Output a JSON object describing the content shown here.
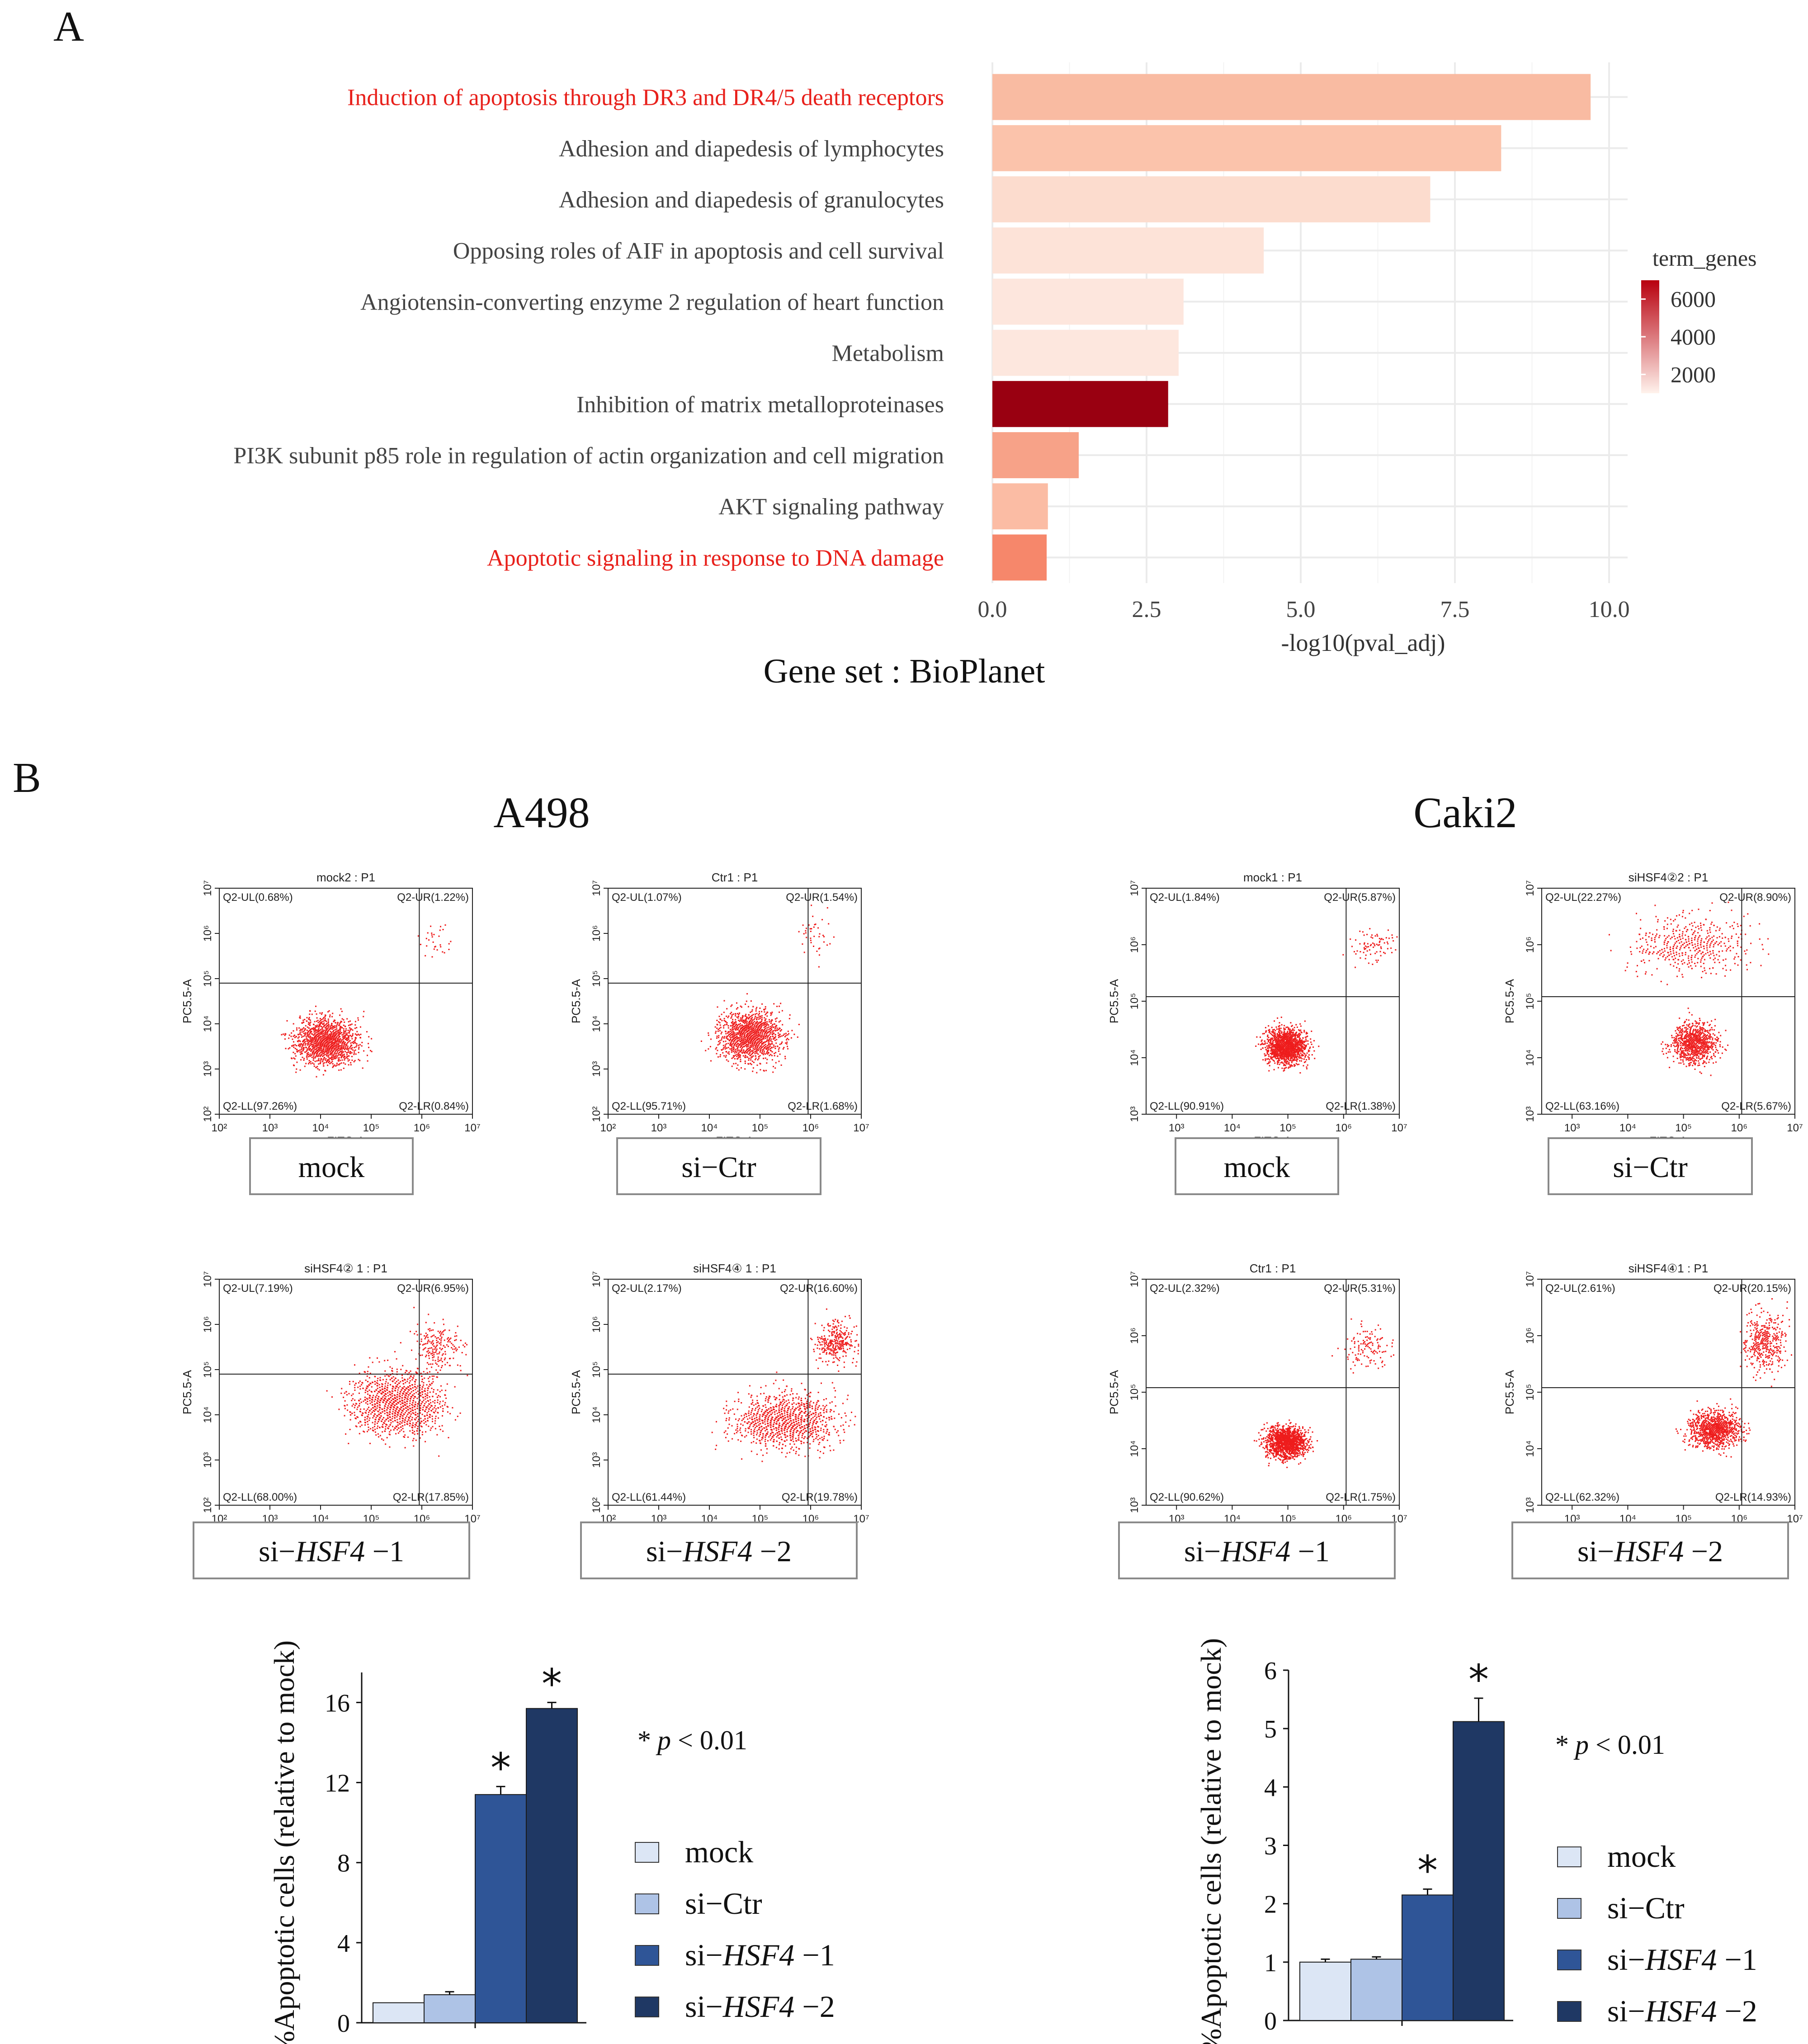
{
  "panel_labels": {
    "a": "A",
    "b": "B"
  },
  "colors": {
    "highlight": "#e8201b",
    "grid": "#ebebeb",
    "flow_dot": "#ee1c1c",
    "mock": "#dce6f5",
    "si_ctr": "#aec3e6",
    "si_hsf4_1": "#2f5597",
    "si_hsf4_2": "#1f3864"
  },
  "chart_data": [
    {
      "id": "A",
      "type": "bar",
      "orientation": "horizontal",
      "categories": [
        "Induction of apoptosis through DR3 and DR4/5 death receptors",
        "Adhesion and diapedesis of lymphocytes",
        "Adhesion and diapedesis of granulocytes",
        "Opposing roles of AIF in apoptosis and cell survival",
        "Angiotensin-converting enzyme 2 regulation of heart function",
        "Metabolism",
        "Inhibition of matrix metalloproteinases",
        "PI3K subunit p85 role in regulation of actin organization and cell migration",
        "AKT signaling pathway",
        "Apoptotic signaling in response to DNA damage"
      ],
      "highlighted": [
        true,
        false,
        false,
        false,
        false,
        false,
        false,
        false,
        false,
        true
      ],
      "values": [
        9.7,
        8.25,
        7.1,
        4.4,
        3.1,
        3.02,
        2.85,
        1.4,
        0.9,
        0.88
      ],
      "fill_colors": [
        "#f9bba2",
        "#fbc3ab",
        "#fcdcce",
        "#fde3d8",
        "#fde6dd",
        "#fde7de",
        "#990011",
        "#f7a288",
        "#fbbca4",
        "#f6876b"
      ],
      "xlabel": "-log10(pval_adj)",
      "xlim": [
        0,
        10.3
      ],
      "xticks": [
        "0.0",
        "2.5",
        "5.0",
        "7.5",
        "10.0"
      ],
      "xtick_values": [
        0,
        2.5,
        5.0,
        7.5,
        10.0
      ],
      "legend": {
        "title": "term_genes",
        "labels": [
          "6000",
          "4000",
          "2000"
        ],
        "label_values": [
          6000,
          4000,
          2000
        ],
        "range": [
          1000,
          7000
        ],
        "color_low": "#fff2ec",
        "color_high": "#b8000e"
      },
      "caption": "Gene set : BioPlanet"
    },
    {
      "id": "B-A498",
      "type": "bar",
      "title": "A498",
      "categories": [
        "mock",
        "si-Ctr",
        "si-HSF4-1",
        "si-HSF4-2"
      ],
      "values": [
        1.0,
        1.4,
        11.4,
        15.7
      ],
      "errors": [
        0.0,
        0.15,
        0.4,
        0.3
      ],
      "significant": [
        false,
        false,
        true,
        true
      ],
      "ylabel": "%Apoptotic cells (relative to mock)",
      "ylim": [
        0,
        17.5
      ],
      "yticks": [
        "0",
        "4",
        "8",
        "12",
        "16"
      ],
      "ytick_values": [
        0,
        4,
        8,
        12,
        16
      ],
      "star": "*",
      "pvalue": {
        "star": "*",
        "p": "p",
        "rest": " < 0.01"
      }
    },
    {
      "id": "B-Caki2",
      "type": "bar",
      "title": "Caki2",
      "categories": [
        "mock",
        "si-Ctr",
        "si-HSF4-1",
        "si-HSF4-2"
      ],
      "values": [
        1.0,
        1.05,
        2.15,
        5.12
      ],
      "errors": [
        0.05,
        0.04,
        0.1,
        0.4
      ],
      "significant": [
        false,
        false,
        true,
        true
      ],
      "ylabel": "%Apoptotic cells (relative to mock)",
      "ylim": [
        0,
        6
      ],
      "yticks": [
        "0",
        "1",
        "2",
        "3",
        "4",
        "5",
        "6"
      ],
      "ytick_values": [
        0,
        1,
        2,
        3,
        4,
        5,
        6
      ],
      "star": "*",
      "pvalue": {
        "star": "*",
        "p": "p",
        "rest": " < 0.01"
      }
    }
  ],
  "bar_legend": [
    {
      "pre": "si−",
      "ital": "",
      "post": ""
    },
    {
      "pre": "mock",
      "ital": "",
      "post": ""
    },
    {
      "pre": "si−Ctr",
      "ital": "",
      "post": ""
    },
    {
      "pre": "si−",
      "ital": "HSF4",
      "post": " −1"
    },
    {
      "pre": "si−",
      "ital": "HSF4",
      "post": " −2"
    }
  ],
  "flow_plots": {
    "axis_x_label": "FITC-A",
    "axis_y_label": "PC5.5-A",
    "x_ticks": [
      "10²",
      "10³",
      "10⁴",
      "10⁵",
      "10⁶",
      "10⁷"
    ],
    "y_ticks": [
      "10²",
      "10³",
      "10⁴",
      "10⁵",
      "10⁶",
      "10⁷"
    ],
    "plots": [
      {
        "title": "mock2 : P1",
        "UL": "Q2-UL(0.68%)",
        "UR": "Q2-UR(1.22%)",
        "LL": "Q2-LL(97.26%)",
        "LR": "Q2-LR(0.84%)",
        "caption": {
          "pre": "mock",
          "ital": "",
          "post": ""
        }
      },
      {
        "title": "Ctr1 : P1",
        "UL": "Q2-UL(1.07%)",
        "UR": "Q2-UR(1.54%)",
        "LL": "Q2-LL(95.71%)",
        "LR": "Q2-LR(1.68%)",
        "caption": {
          "pre": "si−Ctr",
          "ital": "",
          "post": ""
        }
      },
      {
        "title": "mock1 : P1",
        "UL": "Q2-UL(1.84%)",
        "UR": "Q2-UR(5.87%)",
        "LL": "Q2-LL(90.91%)",
        "LR": "Q2-LR(1.38%)",
        "caption": {
          "pre": "mock",
          "ital": "",
          "post": ""
        }
      },
      {
        "title": "siHSF4②2 : P1",
        "UL": "Q2-UL(22.27%)",
        "UR": "Q2-UR(8.90%)",
        "LL": "Q2-LL(63.16%)",
        "LR": "Q2-LR(5.67%)",
        "caption": {
          "pre": "si−Ctr",
          "ital": "",
          "post": ""
        }
      },
      {
        "title": "siHSF4② 1 : P1",
        "UL": "Q2-UL(7.19%)",
        "UR": "Q2-UR(6.95%)",
        "LL": "Q2-LL(68.00%)",
        "LR": "Q2-LR(17.85%)",
        "caption": {
          "pre": "si−",
          "ital": "HSF4",
          "post": " −1"
        }
      },
      {
        "title": "siHSF4④ 1 : P1",
        "UL": "Q2-UL(2.17%)",
        "UR": "Q2-UR(16.60%)",
        "LL": "Q2-LL(61.44%)",
        "LR": "Q2-LR(19.78%)",
        "caption": {
          "pre": "si−",
          "ital": "HSF4",
          "post": " −2"
        }
      },
      {
        "title": "Ctr1 : P1",
        "UL": "Q2-UL(2.32%)",
        "UR": "Q2-UR(5.31%)",
        "LL": "Q2-LL(90.62%)",
        "LR": "Q2-LR(1.75%)",
        "caption": {
          "pre": "si−",
          "ital": "HSF4",
          "post": " −1"
        }
      },
      {
        "title": "siHSF4④1 : P1",
        "UL": "Q2-UL(2.61%)",
        "UR": "Q2-UR(20.15%)",
        "LL": "Q2-LL(62.32%)",
        "LR": "Q2-LR(14.93%)",
        "caption": {
          "pre": "si−",
          "ital": "HSF4",
          "post": " −2"
        }
      }
    ]
  }
}
